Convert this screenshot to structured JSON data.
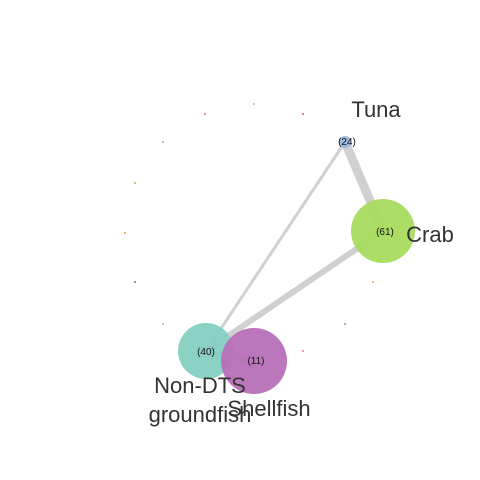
{
  "diagram": {
    "type": "network",
    "nodes": [
      {
        "id": "tuna",
        "label": "Tuna",
        "count": "(24)",
        "value": 24,
        "color": "#9ab8dc"
      },
      {
        "id": "crab",
        "label": "Crab",
        "count": "(61)",
        "value": 61,
        "color": "#a8dc5f"
      },
      {
        "id": "non-dts",
        "label": "Non-DTS groundfish",
        "label_lines": [
          "Non-DTS",
          "groundfish"
        ],
        "count": "(40)",
        "value": 40,
        "color": "#86d0c1"
      },
      {
        "id": "shellfish",
        "label": "Shellfish",
        "count": "(11)",
        "value": 11,
        "color": "#b870b8"
      }
    ],
    "edges": [
      {
        "source": "tuna",
        "target": "crab",
        "weight": "heavy"
      },
      {
        "source": "tuna",
        "target": "non-dts",
        "weight": "light"
      },
      {
        "source": "crab",
        "target": "non-dts",
        "weight": "medium"
      },
      {
        "source": "non-dts",
        "target": "shellfish",
        "weight": "heavy"
      }
    ],
    "minor_nodes": [
      {
        "color": "#e07070"
      },
      {
        "color": "#f0a0a0"
      },
      {
        "color": "#e05050"
      },
      {
        "color": "#c090c0"
      },
      {
        "color": "#d0a060"
      },
      {
        "color": "#f0a030"
      },
      {
        "color": "#a06070"
      },
      {
        "color": "#c0c080"
      },
      {
        "color": "#e08080"
      },
      {
        "color": "#f0a060"
      },
      {
        "color": "#9090c0"
      }
    ],
    "edge_color": "#d0d0d0"
  }
}
